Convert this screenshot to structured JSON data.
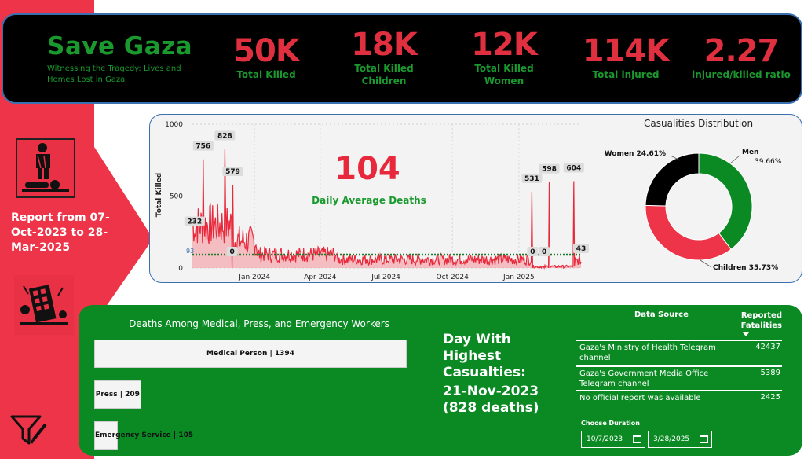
{
  "header": {
    "title": "Save Gaza",
    "subtitle": "Witnessing the Tragedy: Lives and Homes Lost in Gaza",
    "kpis": [
      {
        "value": "50K",
        "label": "Total Killed"
      },
      {
        "value": "18K",
        "label": "Total Killed Children"
      },
      {
        "value": "12K",
        "label": "Total Killed Women"
      },
      {
        "value": "114K",
        "label": "Total injured"
      },
      {
        "value": "2.27",
        "label": "injured/killed ratio"
      }
    ]
  },
  "side": {
    "report_label": "Report from 07-Oct-2023 to 28-Mar-2025",
    "icon_top": "casualty-icon",
    "icon_bottom": "destroyed-building-icon",
    "filter_icon": "filter-icon"
  },
  "daily": {
    "avg_value": "104",
    "avg_label": "Daily Average Deaths"
  },
  "chart_data": [
    {
      "type": "area",
      "ylabel": "Total Killed",
      "ylim": [
        0,
        1000
      ],
      "yticks": [
        "0",
        "500",
        "1000"
      ],
      "xticks": [
        "Jan 2024",
        "Apr 2024",
        "Jul 2024",
        "Oct 2024",
        "Jan 2025"
      ],
      "average_line": 93,
      "average_label": "93",
      "annotations": [
        {
          "date": "2023-10-10",
          "value": 232,
          "label": "232"
        },
        {
          "date": "2023-10-22",
          "value": 756,
          "label": "756"
        },
        {
          "date": "2023-11-21",
          "value": 828,
          "label": "828"
        },
        {
          "date": "2023-12-02",
          "value": 579,
          "label": "579"
        },
        {
          "date": "2023-12-01",
          "value": 0,
          "label": "0"
        },
        {
          "date": "2025-01-19",
          "value": 531,
          "label": "531"
        },
        {
          "date": "2025-01-20",
          "value": 0,
          "label": "0"
        },
        {
          "date": "2025-02-05",
          "value": 0,
          "label": "0"
        },
        {
          "date": "2025-02-12",
          "value": 598,
          "label": "598"
        },
        {
          "date": "2025-03-18",
          "value": 604,
          "label": "604"
        },
        {
          "date": "2025-03-28",
          "value": 43,
          "label": "43"
        }
      ],
      "color": "#e8293c"
    },
    {
      "type": "pie",
      "title": "Casualities Distribution",
      "slices": [
        {
          "label": "Men",
          "value": 39.66,
          "text": "Men\n39.66%",
          "color": "#0b8a24"
        },
        {
          "label": "Children",
          "value": 35.73,
          "text": "Children 35.73%",
          "color": "#ee3448"
        },
        {
          "label": "Women",
          "value": 24.61,
          "text": "Women 24.61%",
          "color": "#000000"
        }
      ]
    },
    {
      "type": "bar",
      "title": "Deaths Among Medical, Press, and Emergency Workers",
      "categories": [
        "Medical Person",
        "Press",
        "Emergency Service"
      ],
      "values": [
        1394,
        209,
        105
      ],
      "labels": [
        "Medical Person | 1394",
        "Press | 209",
        "Emergency Service | 105"
      ]
    }
  ],
  "highest": {
    "title": "Day With Highest Casualties:",
    "value": "21-Nov-2023 (828 deaths)"
  },
  "table": {
    "col1": "Data Source",
    "col2": "Reported Fatalities",
    "rows": [
      {
        "source": "Gaza's Ministry of Health Telegram channel",
        "value": "42437"
      },
      {
        "source": "Gaza's Government Media Office Telegram channel",
        "value": "5389"
      },
      {
        "source": "No official report was available",
        "value": "2425"
      }
    ]
  },
  "duration": {
    "label": "Choose Duration",
    "start": "10/7/2023",
    "end": "3/28/2025"
  }
}
